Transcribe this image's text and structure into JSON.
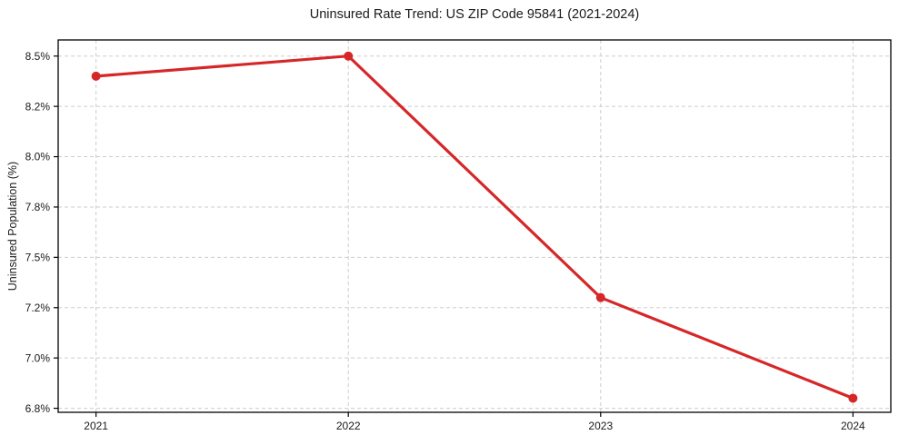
{
  "chart_data": {
    "type": "line",
    "title": "Uninsured Rate Trend: US ZIP Code 95841 (2021-2024)",
    "xlabel": "",
    "ylabel": "Uninsured Population (%)",
    "x": [
      2021,
      2022,
      2023,
      2024
    ],
    "x_tick_labels": [
      "2021",
      "2022",
      "2023",
      "2024"
    ],
    "series": [
      {
        "name": "Uninsured Population (%)",
        "values": [
          8.4,
          8.5,
          7.3,
          6.8
        ]
      }
    ],
    "y_ticks": [
      6.75,
      7.0,
      7.25,
      7.5,
      7.75,
      8.0,
      8.25,
      8.5
    ],
    "y_tick_labels": [
      "6.8%",
      "7.0%",
      "7.2%",
      "7.5%",
      "7.8%",
      "8.0%",
      "8.2%",
      "8.5%"
    ],
    "xlim": [
      2020.85,
      2024.15
    ],
    "ylim": [
      6.73,
      8.58
    ],
    "grid": true,
    "grid_style": "dashed",
    "legend": false,
    "colors": {
      "line": "#d62728",
      "marker": "#d62728",
      "grid": "#cdcdcd",
      "axis": "#000000",
      "text": "#1a1a1a",
      "background": "#ffffff"
    }
  }
}
